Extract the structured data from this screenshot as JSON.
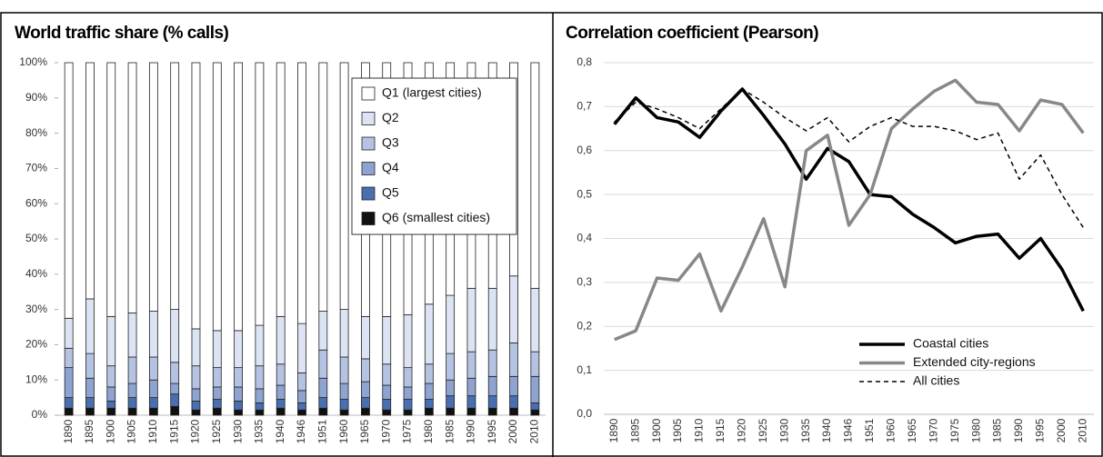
{
  "chart_data": [
    {
      "type": "bar",
      "stacked": true,
      "title": "World traffic share (% calls)",
      "categories": [
        "1890",
        "1895",
        "1900",
        "1905",
        "1910",
        "1915",
        "1920",
        "1925",
        "1930",
        "1935",
        "1940",
        "1946",
        "1951",
        "1960",
        "1965",
        "1970",
        "1975",
        "1980",
        "1985",
        "1990",
        "1995",
        "2000",
        "2010"
      ],
      "series": [
        {
          "name": "Q1 (largest cities)",
          "color": "#ffffff",
          "values": [
            72.5,
            67,
            72,
            71,
            70.5,
            70,
            75.5,
            76,
            76,
            74.5,
            72,
            74,
            70.5,
            70,
            72,
            72,
            71.5,
            68.5,
            66,
            64,
            64,
            60.5,
            64
          ]
        },
        {
          "name": "Q2",
          "color": "#dce3f2",
          "values": [
            8.5,
            15.5,
            14,
            12.5,
            13,
            15,
            10.5,
            10.5,
            10.5,
            11.5,
            13.5,
            14,
            11,
            13.5,
            12,
            13.5,
            15,
            17,
            16.5,
            18,
            17.5,
            19,
            18
          ]
        },
        {
          "name": "Q3",
          "color": "#b5c3e2",
          "values": [
            5.5,
            7,
            6,
            7.5,
            6.5,
            6,
            6.5,
            5.5,
            5.5,
            6.5,
            6,
            5,
            8,
            7.5,
            6.5,
            6,
            5.5,
            5.5,
            7.5,
            7.5,
            7.5,
            9.5,
            7
          ]
        },
        {
          "name": "Q4",
          "color": "#8ea3cf",
          "values": [
            8.5,
            5.5,
            4,
            4,
            5,
            3,
            3.5,
            3.5,
            4,
            4,
            4,
            3.5,
            5.5,
            4.5,
            4.5,
            4,
            3.5,
            4.5,
            4.5,
            5,
            5.5,
            5.5,
            7.5
          ]
        },
        {
          "name": "Q5",
          "color": "#4a6fb0",
          "values": [
            3,
            3,
            2,
            3,
            3,
            3.5,
            2.5,
            2.5,
            2.5,
            2,
            2.5,
            2,
            3,
            3,
            3,
            3,
            3,
            2.5,
            3.5,
            3.5,
            3.5,
            3.5,
            2
          ]
        },
        {
          "name": "Q6 (smallest cities)",
          "color": "#111111",
          "values": [
            2,
            2,
            2,
            2,
            2,
            2.5,
            1.5,
            2,
            1.5,
            1.5,
            2,
            1.5,
            2,
            1.5,
            2,
            1.5,
            1.5,
            2,
            2,
            2,
            2,
            2,
            1.5
          ]
        }
      ],
      "ylim": [
        0,
        100
      ],
      "yticks": [
        {
          "value": 0,
          "label": "0%"
        },
        {
          "value": 10,
          "label": "10%"
        },
        {
          "value": 20,
          "label": "20%"
        },
        {
          "value": 30,
          "label": "30%"
        },
        {
          "value": 40,
          "label": "40%"
        },
        {
          "value": 50,
          "label": "50%"
        },
        {
          "value": 60,
          "label": "60%"
        },
        {
          "value": 70,
          "label": "70%"
        },
        {
          "value": 80,
          "label": "80%"
        },
        {
          "value": 90,
          "label": "90%"
        },
        {
          "value": 100,
          "label": "100%"
        }
      ],
      "grid": false,
      "legend": "upper right"
    },
    {
      "type": "line",
      "title": "Correlation coefficient (Pearson)",
      "categories": [
        "1890",
        "1895",
        "1900",
        "1905",
        "1910",
        "1915",
        "1920",
        "1925",
        "1930",
        "1935",
        "1940",
        "1946",
        "1951",
        "1960",
        "1965",
        "1970",
        "1975",
        "1980",
        "1985",
        "1990",
        "1995",
        "2000",
        "2010"
      ],
      "series": [
        {
          "name": "Coastal cities",
          "color": "#000000",
          "dashed": false,
          "values": [
            0.66,
            0.72,
            0.675,
            0.665,
            0.63,
            0.69,
            0.74,
            0.68,
            0.615,
            0.535,
            0.605,
            0.575,
            0.5,
            0.495,
            0.455,
            0.425,
            0.39,
            0.405,
            0.41,
            0.355,
            0.4,
            0.33,
            0.235
          ]
        },
        {
          "name": "Extended city-regions",
          "color": "#888888",
          "dashed": false,
          "values": [
            0.17,
            0.19,
            0.31,
            0.305,
            0.365,
            0.235,
            0.335,
            0.445,
            0.29,
            0.6,
            0.635,
            0.43,
            0.5,
            0.65,
            0.695,
            0.735,
            0.76,
            0.71,
            0.705,
            0.645,
            0.715,
            0.705,
            0.64
          ]
        },
        {
          "name": "All cities",
          "color": "#000000",
          "dashed": true,
          "values": [
            0.665,
            0.71,
            0.695,
            0.675,
            0.65,
            0.695,
            0.74,
            0.71,
            0.675,
            0.645,
            0.675,
            0.62,
            0.655,
            0.675,
            0.655,
            0.655,
            0.645,
            0.625,
            0.64,
            0.535,
            0.59,
            0.5,
            0.425
          ]
        }
      ],
      "ylim": [
        0,
        0.8
      ],
      "yticks": [
        {
          "value": 0,
          "label": "0,0"
        },
        {
          "value": 0.1,
          "label": "0,1"
        },
        {
          "value": 0.2,
          "label": "0,2"
        },
        {
          "value": 0.3,
          "label": "0,3"
        },
        {
          "value": 0.4,
          "label": "0,4"
        },
        {
          "value": 0.5,
          "label": "0,5"
        },
        {
          "value": 0.6,
          "label": "0,6"
        },
        {
          "value": 0.7,
          "label": "0,7"
        },
        {
          "value": 0.8,
          "label": "0,8"
        }
      ],
      "grid": true,
      "legend": "lower right"
    }
  ]
}
